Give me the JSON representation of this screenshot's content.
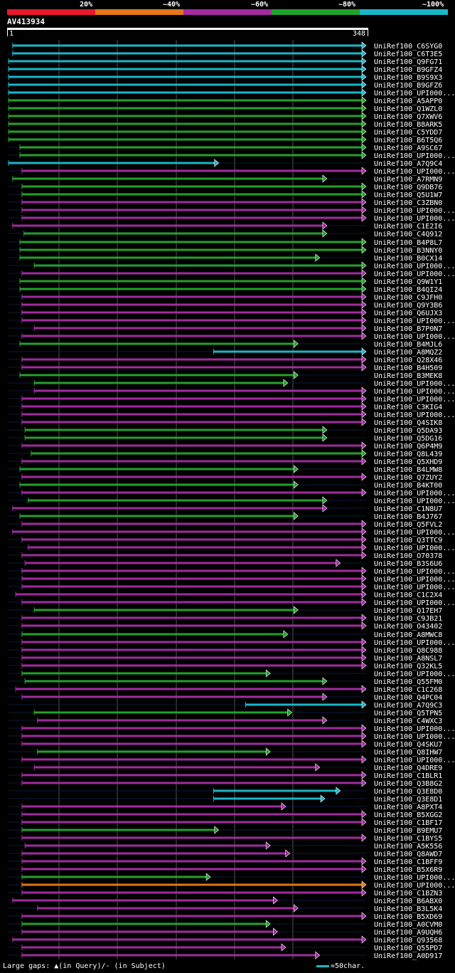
{
  "chart_data": {
    "type": "alignment-overview",
    "query": {
      "id": "AV413934",
      "length": 348,
      "start_label": "1",
      "end_label": "348"
    },
    "identity_legend": [
      {
        "label": "20%",
        "color": "#e8192c"
      },
      {
        "label": "~40%",
        "color": "#e4761c"
      },
      {
        "label": "~60%",
        "color": "#a12b9f"
      },
      {
        "label": "~80%",
        "color": "#22a12b"
      },
      {
        "label": "~100%",
        "color": "#19b6c8"
      }
    ],
    "footer": {
      "gap_note": "Large gaps: ▲(in Query)/- (in Subject)",
      "scale_note": "=50char.",
      "scale_color": "#19b6c8"
    },
    "hits": [
      {
        "name": "UniRef100_C6SYG0",
        "qstart": 5,
        "qend": 348,
        "cls": 4
      },
      {
        "name": "UniRef100_C6T3E5",
        "qstart": 5,
        "qend": 348,
        "cls": 4
      },
      {
        "name": "UniRef100_Q9FG71",
        "qstart": 1,
        "qend": 348,
        "cls": 4
      },
      {
        "name": "UniRef100_B9GFZ4",
        "qstart": 1,
        "qend": 348,
        "cls": 4
      },
      {
        "name": "UniRef100_B9S9X3",
        "qstart": 1,
        "qend": 348,
        "cls": 4
      },
      {
        "name": "UniRef100_B9GFZ6",
        "qstart": 1,
        "qend": 348,
        "cls": 4
      },
      {
        "name": "UniRef100_UPI000...",
        "qstart": 1,
        "qend": 348,
        "cls": 4
      },
      {
        "name": "UniRef100_A5APP0",
        "qstart": 1,
        "qend": 348,
        "cls": 3
      },
      {
        "name": "UniRef100_Q1WZL0",
        "qstart": 1,
        "qend": 348,
        "cls": 3
      },
      {
        "name": "UniRef100_Q7XWV6",
        "qstart": 1,
        "qend": 348,
        "cls": 3
      },
      {
        "name": "UniRef100_B8ARK5",
        "qstart": 1,
        "qend": 348,
        "cls": 3
      },
      {
        "name": "UniRef100_C5YDD7",
        "qstart": 1,
        "qend": 348,
        "cls": 3
      },
      {
        "name": "UniRef100_B6T5Q6",
        "qstart": 1,
        "qend": 348,
        "cls": 3
      },
      {
        "name": "UniRef100_A9SC67",
        "qstart": 12,
        "qend": 348,
        "cls": 3
      },
      {
        "name": "UniRef100_UPI000...",
        "qstart": 12,
        "qend": 348,
        "cls": 3
      },
      {
        "name": "UniRef100_A7Q9C4",
        "qstart": 1,
        "qend": 205,
        "cls": 4
      },
      {
        "name": "UniRef100_UPI000...",
        "qstart": 14,
        "qend": 348,
        "cls": 2
      },
      {
        "name": "UniRef100_A7RMN9",
        "qstart": 5,
        "qend": 310,
        "cls": 3
      },
      {
        "name": "UniRef100_Q9DB76",
        "qstart": 14,
        "qend": 348,
        "cls": 3
      },
      {
        "name": "UniRef100_Q5U1W7",
        "qstart": 14,
        "qend": 348,
        "cls": 3
      },
      {
        "name": "UniRef100_C3ZBN0",
        "qstart": 14,
        "qend": 348,
        "cls": 2
      },
      {
        "name": "UniRef100_UPI000...",
        "qstart": 14,
        "qend": 348,
        "cls": 2
      },
      {
        "name": "UniRef100_UPI000...",
        "qstart": 14,
        "qend": 348,
        "cls": 2
      },
      {
        "name": "UniRef100_C1E2I6",
        "qstart": 5,
        "qend": 310,
        "cls": 2
      },
      {
        "name": "UniRef100_C4Q912",
        "qstart": 16,
        "qend": 310,
        "cls": 3
      },
      {
        "name": "UniRef100_B4P8L7",
        "qstart": 12,
        "qend": 348,
        "cls": 3
      },
      {
        "name": "UniRef100_B3NNY0",
        "qstart": 12,
        "qend": 348,
        "cls": 3
      },
      {
        "name": "UniRef100_B0CX14",
        "qstart": 12,
        "qend": 303,
        "cls": 3
      },
      {
        "name": "UniRef100_UPI000...",
        "qstart": 26,
        "qend": 348,
        "cls": 3
      },
      {
        "name": "UniRef100_UPI000...",
        "qstart": 14,
        "qend": 348,
        "cls": 2
      },
      {
        "name": "UniRef100_Q9W1Y1",
        "qstart": 12,
        "qend": 348,
        "cls": 3
      },
      {
        "name": "UniRef100_B4QI24",
        "qstart": 12,
        "qend": 348,
        "cls": 3
      },
      {
        "name": "UniRef100_C9JFH0",
        "qstart": 14,
        "qend": 348,
        "cls": 2
      },
      {
        "name": "UniRef100_Q9Y3B6",
        "qstart": 14,
        "qend": 348,
        "cls": 2
      },
      {
        "name": "UniRef100_Q6UJX3",
        "qstart": 14,
        "qend": 348,
        "cls": 2
      },
      {
        "name": "UniRef100_UPI000...",
        "qstart": 14,
        "qend": 348,
        "cls": 2
      },
      {
        "name": "UniRef100_B7P0N7",
        "qstart": 26,
        "qend": 348,
        "cls": 2
      },
      {
        "name": "UniRef100_UPI000...",
        "qstart": 14,
        "qend": 348,
        "cls": 2
      },
      {
        "name": "UniRef100_B4MJL6",
        "qstart": 12,
        "qend": 282,
        "cls": 3
      },
      {
        "name": "UniRef100_A8MQZ2",
        "qstart": 200,
        "qend": 348,
        "cls": 4
      },
      {
        "name": "UniRef100_Q28X46",
        "qstart": 14,
        "qend": 348,
        "cls": 2
      },
      {
        "name": "UniRef100_B4H509",
        "qstart": 14,
        "qend": 348,
        "cls": 2
      },
      {
        "name": "UniRef100_B3MEK8",
        "qstart": 12,
        "qend": 282,
        "cls": 3
      },
      {
        "name": "UniRef100_UPI000...",
        "qstart": 26,
        "qend": 272,
        "cls": 3
      },
      {
        "name": "UniRef100_UPI000...",
        "qstart": 26,
        "qend": 348,
        "cls": 2
      },
      {
        "name": "UniRef100_UPI000...",
        "qstart": 14,
        "qend": 348,
        "cls": 2
      },
      {
        "name": "UniRef100_C3KIG4",
        "qstart": 14,
        "qend": 348,
        "cls": 2
      },
      {
        "name": "UniRef100_UPI000...",
        "qstart": 14,
        "qend": 348,
        "cls": 2
      },
      {
        "name": "UniRef100_Q4SIK8",
        "qstart": 14,
        "qend": 348,
        "cls": 2
      },
      {
        "name": "UniRef100_Q5DA93",
        "qstart": 17,
        "qend": 310,
        "cls": 3
      },
      {
        "name": "UniRef100_Q5DG16",
        "qstart": 17,
        "qend": 310,
        "cls": 3
      },
      {
        "name": "UniRef100_Q6P4M9",
        "qstart": 14,
        "qend": 348,
        "cls": 2
      },
      {
        "name": "UniRef100_Q8L439",
        "qstart": 23,
        "qend": 348,
        "cls": 3
      },
      {
        "name": "UniRef100_Q5XHD9",
        "qstart": 14,
        "qend": 348,
        "cls": 2
      },
      {
        "name": "UniRef100_B4LMW8",
        "qstart": 12,
        "qend": 282,
        "cls": 3
      },
      {
        "name": "UniRef100_Q7ZUY2",
        "qstart": 14,
        "qend": 348,
        "cls": 2
      },
      {
        "name": "UniRef100_B4KT00",
        "qstart": 12,
        "qend": 282,
        "cls": 3
      },
      {
        "name": "UniRef100_UPI000...",
        "qstart": 14,
        "qend": 348,
        "cls": 2
      },
      {
        "name": "UniRef100_UPI000...",
        "qstart": 20,
        "qend": 310,
        "cls": 3
      },
      {
        "name": "UniRef100_C1N8U7",
        "qstart": 5,
        "qend": 310,
        "cls": 2
      },
      {
        "name": "UniRef100_B4J767",
        "qstart": 12,
        "qend": 282,
        "cls": 3
      },
      {
        "name": "UniRef100_Q5FVL2",
        "qstart": 14,
        "qend": 348,
        "cls": 2
      },
      {
        "name": "UniRef100_UPI000...",
        "qstart": 5,
        "qend": 348,
        "cls": 2
      },
      {
        "name": "UniRef100_Q3TTC9",
        "qstart": 14,
        "qend": 348,
        "cls": 2
      },
      {
        "name": "UniRef100_UPI000...",
        "qstart": 20,
        "qend": 348,
        "cls": 2
      },
      {
        "name": "UniRef100_O70378",
        "qstart": 14,
        "qend": 348,
        "cls": 2
      },
      {
        "name": "UniRef100_B3S6U6",
        "qstart": 17,
        "qend": 323,
        "cls": 2
      },
      {
        "name": "UniRef100_UPI000...",
        "qstart": 14,
        "qend": 348,
        "cls": 2
      },
      {
        "name": "UniRef100_UPI000...",
        "qstart": 14,
        "qend": 348,
        "cls": 2
      },
      {
        "name": "UniRef100_UPI000...",
        "qstart": 14,
        "qend": 348,
        "cls": 2
      },
      {
        "name": "UniRef100_C1C2X4",
        "qstart": 8,
        "qend": 348,
        "cls": 2
      },
      {
        "name": "UniRef100_UPI000...",
        "qstart": 14,
        "qend": 348,
        "cls": 2
      },
      {
        "name": "UniRef100_Q17EH7",
        "qstart": 26,
        "qend": 282,
        "cls": 3
      },
      {
        "name": "UniRef100_C9JB21",
        "qstart": 14,
        "qend": 348,
        "cls": 2
      },
      {
        "name": "UniRef100_O43402",
        "qstart": 14,
        "qend": 348,
        "cls": 2
      },
      {
        "name": "UniRef100_A8MWC8",
        "qstart": 14,
        "qend": 272,
        "cls": 3
      },
      {
        "name": "UniRef100_UPI000...",
        "qstart": 14,
        "qend": 348,
        "cls": 2
      },
      {
        "name": "UniRef100_Q8C988",
        "qstart": 14,
        "qend": 348,
        "cls": 2
      },
      {
        "name": "UniRef100_A8NSL7",
        "qstart": 14,
        "qend": 348,
        "cls": 2
      },
      {
        "name": "UniRef100_Q32KL5",
        "qstart": 14,
        "qend": 348,
        "cls": 2
      },
      {
        "name": "UniRef100_UPI000...",
        "qstart": 14,
        "qend": 255,
        "cls": 3
      },
      {
        "name": "UniRef100_Q55FM0",
        "qstart": 17,
        "qend": 310,
        "cls": 3
      },
      {
        "name": "UniRef100_C1C268",
        "qstart": 8,
        "qend": 348,
        "cls": 2
      },
      {
        "name": "UniRef100_Q4PC04",
        "qstart": 14,
        "qend": 310,
        "cls": 2
      },
      {
        "name": "UniRef100_A7Q9C3",
        "qstart": 231,
        "qend": 348,
        "cls": 4
      },
      {
        "name": "UniRef100_Q5TPN5",
        "qstart": 26,
        "qend": 276,
        "cls": 3
      },
      {
        "name": "UniRef100_C4WXC3",
        "qstart": 29,
        "qend": 310,
        "cls": 2
      },
      {
        "name": "UniRef100_UPI000...",
        "qstart": 14,
        "qend": 348,
        "cls": 2
      },
      {
        "name": "UniRef100_UPI000...",
        "qstart": 14,
        "qend": 348,
        "cls": 2
      },
      {
        "name": "UniRef100_Q4SKU7",
        "qstart": 14,
        "qend": 348,
        "cls": 2
      },
      {
        "name": "UniRef100_Q8IHW7",
        "qstart": 29,
        "qend": 255,
        "cls": 3
      },
      {
        "name": "UniRef100_UPI000...",
        "qstart": 14,
        "qend": 348,
        "cls": 2
      },
      {
        "name": "UniRef100_Q4DRE9",
        "qstart": 26,
        "qend": 303,
        "cls": 2
      },
      {
        "name": "UniRef100_C1BLR1",
        "qstart": 14,
        "qend": 348,
        "cls": 2
      },
      {
        "name": "UniRef100_Q3B8G2",
        "qstart": 14,
        "qend": 348,
        "cls": 2
      },
      {
        "name": "UniRef100_Q3E8D0",
        "qstart": 200,
        "qend": 323,
        "cls": 4
      },
      {
        "name": "UniRef100_Q3E8D1",
        "qstart": 200,
        "qend": 308,
        "cls": 4
      },
      {
        "name": "UniRef100_A8PXT4",
        "qstart": 14,
        "qend": 270,
        "cls": 2
      },
      {
        "name": "UniRef100_B5XGG2",
        "qstart": 14,
        "qend": 348,
        "cls": 2
      },
      {
        "name": "UniRef100_C1BF17",
        "qstart": 14,
        "qend": 348,
        "cls": 2
      },
      {
        "name": "UniRef100_B9EMU7",
        "qstart": 14,
        "qend": 205,
        "cls": 3
      },
      {
        "name": "UniRef100_C1BYS5",
        "qstart": 14,
        "qend": 348,
        "cls": 2
      },
      {
        "name": "UniRef100_A5K556",
        "qstart": 17,
        "qend": 255,
        "cls": 2
      },
      {
        "name": "UniRef100_Q8AWD7",
        "qstart": 14,
        "qend": 274,
        "cls": 2
      },
      {
        "name": "UniRef100_C1BFF9",
        "qstart": 14,
        "qend": 348,
        "cls": 2
      },
      {
        "name": "UniRef100_B5X6R9",
        "qstart": 14,
        "qend": 348,
        "cls": 2
      },
      {
        "name": "UniRef100_UPI000...",
        "qstart": 14,
        "qend": 197,
        "cls": 3
      },
      {
        "name": "UniRef100_UPI000...",
        "qstart": 14,
        "qend": 348,
        "cls": 1
      },
      {
        "name": "UniRef100_C1BZN3",
        "qstart": 14,
        "qend": 348,
        "cls": 2
      },
      {
        "name": "UniRef100_B6ABX0",
        "qstart": 5,
        "qend": 262,
        "cls": 2
      },
      {
        "name": "UniRef100_B3L5K4",
        "qstart": 29,
        "qend": 282,
        "cls": 2
      },
      {
        "name": "UniRef100_B5XD69",
        "qstart": 14,
        "qend": 348,
        "cls": 2
      },
      {
        "name": "UniRef100_A0CVM0",
        "qstart": 14,
        "qend": 255,
        "cls": 3
      },
      {
        "name": "UniRef100_A9UQH6",
        "qstart": 14,
        "qend": 262,
        "cls": 2
      },
      {
        "name": "UniRef100_Q93568",
        "qstart": 5,
        "qend": 348,
        "cls": 2
      },
      {
        "name": "UniRef100_Q55PD7",
        "qstart": 14,
        "qend": 270,
        "cls": 2
      },
      {
        "name": "UniRef100_A0D917",
        "qstart": 14,
        "qend": 303,
        "cls": 2
      }
    ]
  }
}
